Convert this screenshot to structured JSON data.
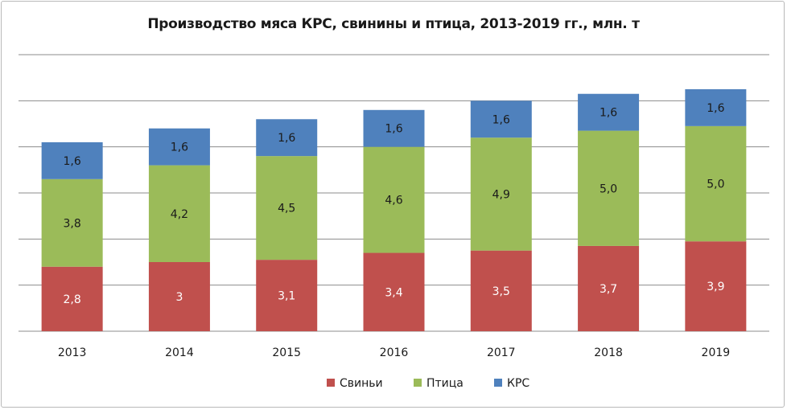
{
  "chart_data": {
    "type": "bar",
    "stacked": true,
    "title": "Производство мяса КРС, свинины и птица, 2013-2019  гг., млн. т",
    "xlabel": "",
    "ylabel": "",
    "categories": [
      "2013",
      "2014",
      "2015",
      "2016",
      "2017",
      "2018",
      "2019"
    ],
    "series": [
      {
        "name": "Свиньи",
        "color": "#c0504d",
        "values": [
          2.8,
          3,
          3.1,
          3.4,
          3.5,
          3.7,
          3.9
        ],
        "labels": [
          "2,8",
          "3",
          "3,1",
          "3,4",
          "3,5",
          "3,7",
          "3,9"
        ]
      },
      {
        "name": "Птица",
        "color": "#9bbb59",
        "values": [
          3.8,
          4.2,
          4.5,
          4.6,
          4.9,
          5.0,
          5.0
        ],
        "labels": [
          "3,8",
          "4,2",
          "4,5",
          "4,6",
          "4,9",
          "5,0",
          "5,0"
        ]
      },
      {
        "name": "КРС",
        "color": "#4f81bd",
        "values": [
          1.6,
          1.6,
          1.6,
          1.6,
          1.6,
          1.6,
          1.6
        ],
        "labels": [
          "1,6",
          "1,6",
          "1,6",
          "1,6",
          "1,6",
          "1,6",
          "1,6"
        ]
      }
    ],
    "ylim": [
      0,
      12
    ],
    "grid": true,
    "legend_position": "bottom"
  }
}
